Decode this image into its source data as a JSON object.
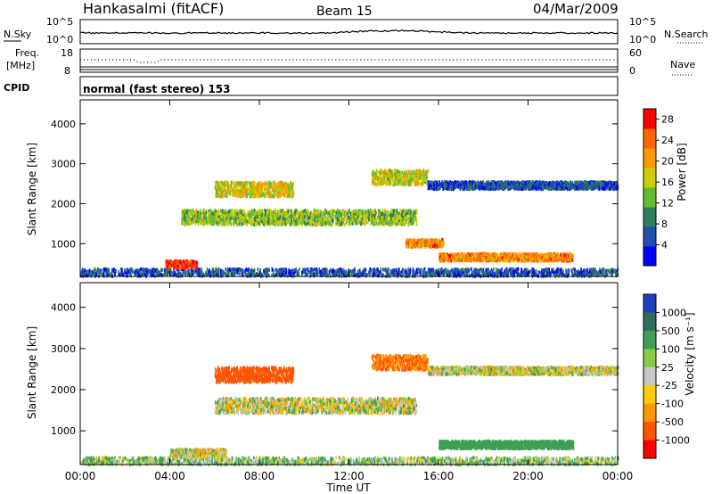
{
  "header": {
    "station": "Hankasalmi (fitACF)",
    "beam": "Beam 15",
    "date": "04/Mar/2009"
  },
  "noise_panel": {
    "left_label": "N.Sky",
    "left_ticks": [
      "10^5",
      "10^0"
    ],
    "right_label": "N.Search",
    "right_ticks": [
      "10^5",
      "10^0"
    ]
  },
  "freq_panel": {
    "left_label_1": "Freq.",
    "left_label_2": "[MHz]",
    "left_ticks": [
      "18",
      "8"
    ],
    "right_label": "Nave",
    "right_ticks": [
      "60",
      "0"
    ]
  },
  "cpid_panel": {
    "label": "CPID",
    "text": "normal (fast stereo) 153"
  },
  "x_axis": {
    "label": "Time UT",
    "ticks": [
      "00:00",
      "04:00",
      "08:00",
      "12:00",
      "16:00",
      "20:00",
      "00:00"
    ]
  },
  "chart_data": [
    {
      "type": "heatmap",
      "title": "",
      "xlabel": "Time UT",
      "ylabel": "Slant Range [km]",
      "x_ticks": [
        "00:00",
        "04:00",
        "08:00",
        "12:00",
        "16:00",
        "20:00",
        "00:00"
      ],
      "xlim_hours": [
        0,
        24
      ],
      "ylim_km": [
        180,
        4600
      ],
      "y_ticks": [
        "1000",
        "2000",
        "3000",
        "4000"
      ],
      "colorbar": {
        "label": "Power [dB]",
        "ticks": [
          "4",
          "8",
          "12",
          "16",
          "20",
          "24",
          "28"
        ],
        "range": [
          0,
          30
        ],
        "colors": [
          "#0000ff",
          "#1f4fb0",
          "#2e7d5a",
          "#66bb33",
          "#cccc00",
          "#ff9900",
          "#ff6600",
          "#ff0000"
        ]
      },
      "regions": [
        {
          "feature": "ground scatter low range",
          "t_start": 0.0,
          "t_end": 24.0,
          "range_km": 320,
          "level": 6
        },
        {
          "feature": "strong near echo",
          "t_start": 3.8,
          "t_end": 5.2,
          "range_km": 520,
          "level": 27
        },
        {
          "feature": "main band",
          "t_start": 4.5,
          "t_end": 15.0,
          "range_km": 1700,
          "level": 14
        },
        {
          "feature": "upper band",
          "t_start": 6.0,
          "t_end": 9.5,
          "range_km": 2400,
          "level": 17
        },
        {
          "feature": "upper band 2",
          "t_start": 13.0,
          "t_end": 15.5,
          "range_km": 2700,
          "level": 16
        },
        {
          "feature": "descending echo",
          "t_start": 14.5,
          "t_end": 16.2,
          "range_km": 1050,
          "level": 22
        },
        {
          "feature": "late low echo",
          "t_start": 16.0,
          "t_end": 22.0,
          "range_km": 700,
          "level": 22
        },
        {
          "feature": "evening upper",
          "t_start": 15.5,
          "t_end": 24.0,
          "range_km": 2500,
          "level": 6
        }
      ]
    },
    {
      "type": "heatmap",
      "title": "",
      "xlabel": "Time UT",
      "ylabel": "Slant Range [km]",
      "x_ticks": [
        "00:00",
        "04:00",
        "08:00",
        "12:00",
        "16:00",
        "20:00",
        "00:00"
      ],
      "xlim_hours": [
        0,
        24
      ],
      "ylim_km": [
        180,
        4600
      ],
      "y_ticks": [
        "1000",
        "2000",
        "3000",
        "4000"
      ],
      "colorbar": {
        "label": "Velocity [m s⁻¹]",
        "ticks": [
          "1000",
          "500",
          "100",
          "25",
          "-25",
          "-100",
          "-500",
          "-1000"
        ],
        "colors": [
          "#1a3fbf",
          "#2e6e5a",
          "#3f9f55",
          "#88cc44",
          "#c8c8c8",
          "#ffcc00",
          "#ff9900",
          "#ff5500",
          "#ff0000"
        ]
      },
      "regions": [
        {
          "feature": "ground scatter low range",
          "t_start": 0.0,
          "t_end": 24.0,
          "range_km": 300,
          "velocity": 50
        },
        {
          "feature": "near echo",
          "t_start": 4.0,
          "t_end": 6.5,
          "range_km": 500,
          "velocity": 0
        },
        {
          "feature": "main band",
          "t_start": 6.0,
          "t_end": 15.0,
          "range_km": 1650,
          "velocity": 0
        },
        {
          "feature": "upper band",
          "t_start": 6.0,
          "t_end": 9.5,
          "range_km": 2400,
          "velocity": -600
        },
        {
          "feature": "upper band 2",
          "t_start": 13.0,
          "t_end": 15.5,
          "range_km": 2700,
          "velocity": -300
        },
        {
          "feature": "late low echo",
          "t_start": 16.0,
          "t_end": 22.0,
          "range_km": 700,
          "velocity": 200
        },
        {
          "feature": "evening upper",
          "t_start": 15.5,
          "t_end": 24.0,
          "range_km": 2500,
          "velocity": 0
        }
      ]
    }
  ]
}
